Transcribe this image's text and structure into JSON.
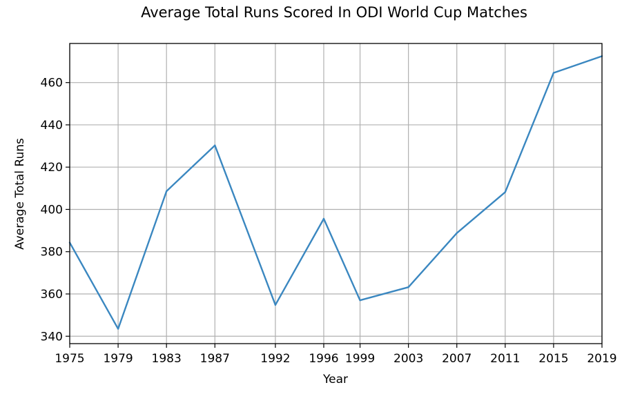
{
  "chart_data": {
    "type": "line",
    "title": "Average Total Runs Scored In ODI World Cup Matches",
    "xlabel": "Year",
    "ylabel": "Average Total Runs",
    "x": [
      1975,
      1979,
      1983,
      1987,
      1992,
      1996,
      1999,
      2003,
      2007,
      2011,
      2015,
      2019
    ],
    "x_tick_labels": [
      "1975",
      "1979",
      "1983",
      "1987",
      "1992",
      "1996",
      "1999",
      "2003",
      "2007",
      "2011",
      "2015",
      "2019"
    ],
    "series": [
      {
        "values": [
          384.3,
          343.5,
          408.6,
          430.3,
          354.8,
          395.6,
          357.0,
          363.2,
          388.8,
          408.2,
          464.6,
          472.5
        ]
      }
    ],
    "ylim": [
      336.5,
      478.5
    ],
    "y_ticks": [
      340,
      360,
      380,
      400,
      420,
      440,
      460
    ],
    "grid": true,
    "line_color": "#3a87c0"
  }
}
